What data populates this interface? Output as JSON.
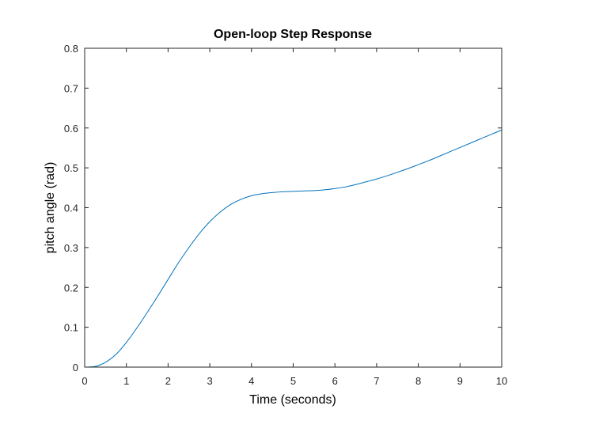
{
  "chart_data": {
    "type": "line",
    "title": "Open-loop Step Response",
    "xlabel": "Time (seconds)",
    "ylabel": "pitch angle (rad)",
    "xlim": [
      0,
      10
    ],
    "ylim": [
      0,
      0.8
    ],
    "xticks": [
      "0",
      "1",
      "2",
      "3",
      "4",
      "5",
      "6",
      "7",
      "8",
      "9",
      "10"
    ],
    "yticks": [
      "0",
      "0.1",
      "0.2",
      "0.3",
      "0.4",
      "0.5",
      "0.6",
      "0.7",
      "0.8"
    ],
    "grid": false,
    "line_color": "#0072BD",
    "series": [
      {
        "x": [
          0,
          0.1,
          0.2,
          0.3,
          0.5,
          0.75,
          1.0,
          1.25,
          1.5,
          1.75,
          2.0,
          2.25,
          2.5,
          2.75,
          3.0,
          3.25,
          3.5,
          3.75,
          4.0,
          4.25,
          4.5,
          4.75,
          5.0,
          5.25,
          5.5,
          5.75,
          6.0,
          6.25,
          6.5,
          6.75,
          7.0,
          7.25,
          7.5,
          7.75,
          8.0,
          8.25,
          8.5,
          8.75,
          9.0,
          9.25,
          9.5,
          9.75,
          10.0
        ],
        "y": [
          0,
          0.0003,
          0.001,
          0.003,
          0.012,
          0.032,
          0.062,
          0.098,
          0.137,
          0.178,
          0.22,
          0.262,
          0.3,
          0.335,
          0.365,
          0.389,
          0.408,
          0.421,
          0.43,
          0.435,
          0.438,
          0.44,
          0.441,
          0.442,
          0.443,
          0.445,
          0.448,
          0.452,
          0.458,
          0.465,
          0.472,
          0.48,
          0.489,
          0.498,
          0.508,
          0.518,
          0.529,
          0.54,
          0.551,
          0.562,
          0.573,
          0.584,
          0.595
        ]
      }
    ]
  }
}
